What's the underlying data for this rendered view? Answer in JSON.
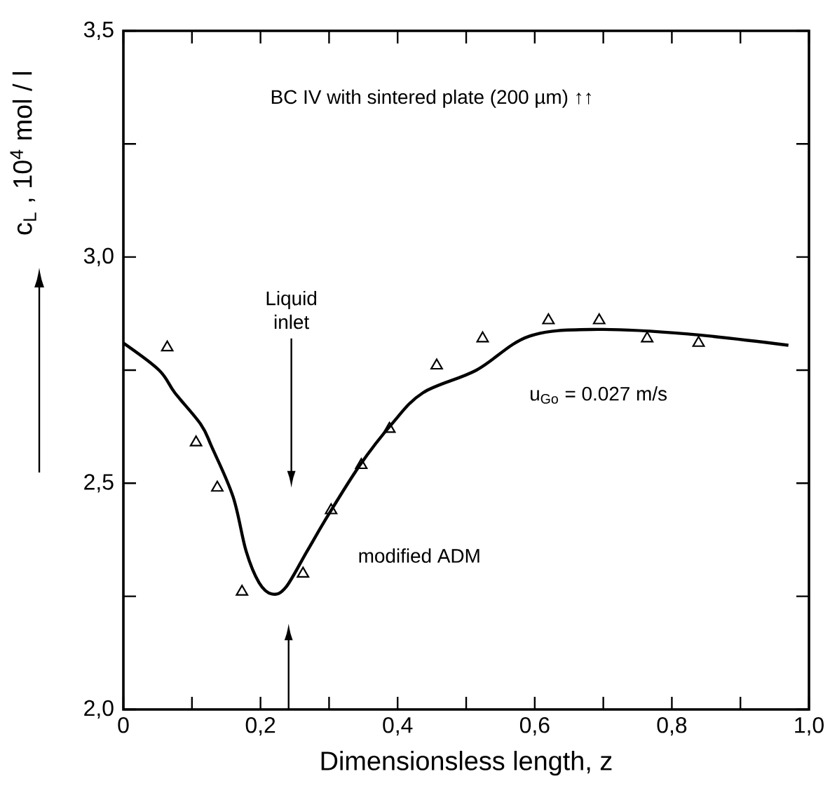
{
  "chart_data": {
    "type": "scatter",
    "xlabel": "Dimensionsless length, z",
    "ylabel": "c$_{L}$ , 10$^{4}$ mol / l",
    "annotations": [
      "BC IV with sintered plate (200 µm) ↑↑",
      "Liquid inlet",
      "u$_{Go}$ = 0.027 m/s"
    ],
    "series": [
      {
        "marker": "triangle",
        "color": "#000000",
        "x": [
          0.064,
          0.106,
          0.137,
          0.173,
          0.262,
          0.303,
          0.347,
          0.388,
          0.457,
          0.524,
          0.62,
          0.694,
          0.764,
          0.839
        ],
        "values": [
          2.8,
          2.59,
          2.49,
          2.26,
          2.3,
          2.44,
          2.54,
          2.62,
          2.76,
          2.82,
          2.86,
          2.86,
          2.82,
          2.81
        ]
      },
      {
        "type": "line",
        "name": "modified ADM",
        "marker": "none",
        "color": "#000000",
        "x": [
          0,
          0.052,
          0.075,
          0.113,
          0.129,
          0.16,
          0.179,
          0.198,
          0.217,
          0.237,
          0.268,
          0.299,
          0.345,
          0.391,
          0.437,
          0.515,
          0.592,
          0.692,
          0.823,
          0.97
        ],
        "values": [
          2.81,
          2.75,
          2.7,
          2.63,
          2.58,
          2.47,
          2.35,
          2.28,
          2.255,
          2.27,
          2.35,
          2.43,
          2.54,
          2.63,
          2.7,
          2.75,
          2.825,
          2.84,
          2.83,
          2.805
        ]
      }
    ],
    "xlim": [
      0,
      1.0
    ],
    "ylim": [
      2.0,
      3.5
    ],
    "xticks": [
      0,
      {
        "value": 0.1,
        "label": null
      },
      {
        "value": 0.2,
        "label": "0,2"
      },
      {
        "value": 0.3,
        "label": null
      },
      {
        "value": 0.4,
        "label": "0,4"
      },
      {
        "value": 0.5,
        "label": null
      },
      {
        "value": 0.6,
        "label": "0,6"
      },
      {
        "value": 0.7,
        "label": null
      },
      {
        "value": 0.8,
        "label": "0,8"
      },
      {
        "value": 0.9,
        "label": null
      },
      {
        "value": 1.0,
        "label": "1,0"
      }
    ],
    "yticks": [
      {
        "value": 2.0,
        "label": "2,0"
      },
      {
        "value": 2.25,
        "label": null
      },
      {
        "value": 2.5,
        "label": "2,5"
      },
      {
        "value": 2.75,
        "label": null
      },
      {
        "value": 3.0,
        "label": "3,0"
      },
      {
        "value": 3.25,
        "label": null
      },
      {
        "value": 3.5,
        "label": "3,5"
      }
    ],
    "grid": false
  }
}
